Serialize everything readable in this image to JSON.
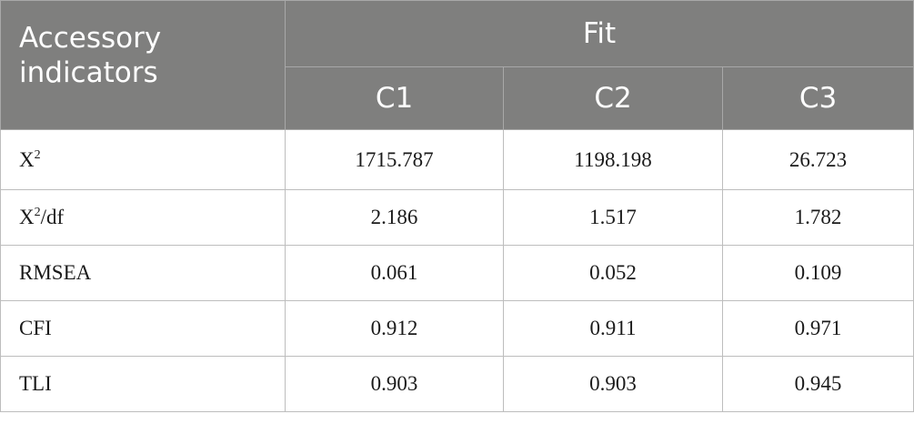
{
  "table": {
    "header": {
      "corner_label": "Accessory indicators",
      "group_label": "Fit",
      "columns": [
        "C1",
        "C2",
        "C3"
      ]
    },
    "rows": [
      {
        "label": "X",
        "sup": "2",
        "suffix": "",
        "values": [
          "1715.787",
          "1198.198",
          "26.723"
        ]
      },
      {
        "label": "X",
        "sup": "2",
        "suffix": "/df",
        "values": [
          "2.186",
          "1.517",
          "1.782"
        ]
      },
      {
        "label": "RMSEA",
        "sup": "",
        "suffix": "",
        "values": [
          "0.061",
          "0.052",
          "0.109"
        ]
      },
      {
        "label": "CFI",
        "sup": "",
        "suffix": "",
        "values": [
          "0.912",
          "0.911",
          "0.971"
        ]
      },
      {
        "label": "TLI",
        "sup": "",
        "suffix": "",
        "values": [
          "0.903",
          "0.903",
          "0.945"
        ]
      }
    ]
  }
}
